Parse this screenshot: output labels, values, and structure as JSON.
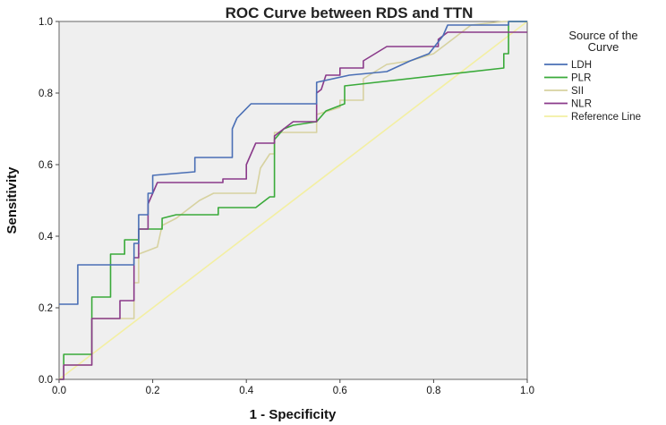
{
  "chart_data": {
    "type": "line",
    "title": "ROC Curve between RDS and TTN",
    "xlabel": "1 - Specificity",
    "ylabel": "Sensitivity",
    "xlim": [
      0,
      1
    ],
    "ylim": [
      0,
      1
    ],
    "x_ticks": [
      "0.0",
      "0.2",
      "0.4",
      "0.6",
      "0.8",
      "1.0"
    ],
    "y_ticks": [
      "0.0",
      "0.2",
      "0.4",
      "0.6",
      "0.8",
      "1.0"
    ],
    "grid": false,
    "plot_background": "#efefef",
    "legend": {
      "title_lines": [
        "Source of the",
        "Curve"
      ],
      "placement": "right"
    },
    "series": [
      {
        "name": "LDH",
        "color": "#4a6fb5",
        "points": [
          [
            0,
            0.21
          ],
          [
            0.04,
            0.21
          ],
          [
            0.04,
            0.32
          ],
          [
            0.16,
            0.32
          ],
          [
            0.16,
            0.38
          ],
          [
            0.17,
            0.38
          ],
          [
            0.17,
            0.46
          ],
          [
            0.19,
            0.46
          ],
          [
            0.19,
            0.52
          ],
          [
            0.2,
            0.52
          ],
          [
            0.2,
            0.57
          ],
          [
            0.29,
            0.58
          ],
          [
            0.29,
            0.62
          ],
          [
            0.37,
            0.62
          ],
          [
            0.37,
            0.7
          ],
          [
            0.38,
            0.73
          ],
          [
            0.41,
            0.77
          ],
          [
            0.55,
            0.77
          ],
          [
            0.55,
            0.83
          ],
          [
            0.62,
            0.85
          ],
          [
            0.7,
            0.86
          ],
          [
            0.75,
            0.89
          ],
          [
            0.79,
            0.91
          ],
          [
            0.82,
            0.96
          ],
          [
            0.83,
            0.99
          ],
          [
            0.96,
            0.99
          ],
          [
            0.96,
            1.0
          ],
          [
            1.0,
            1.0
          ]
        ]
      },
      {
        "name": "PLR",
        "color": "#3aaa3a",
        "points": [
          [
            0,
            0
          ],
          [
            0.01,
            0
          ],
          [
            0.01,
            0.07
          ],
          [
            0.07,
            0.07
          ],
          [
            0.07,
            0.23
          ],
          [
            0.11,
            0.23
          ],
          [
            0.11,
            0.35
          ],
          [
            0.14,
            0.35
          ],
          [
            0.14,
            0.39
          ],
          [
            0.17,
            0.39
          ],
          [
            0.17,
            0.42
          ],
          [
            0.22,
            0.42
          ],
          [
            0.22,
            0.45
          ],
          [
            0.25,
            0.46
          ],
          [
            0.34,
            0.46
          ],
          [
            0.34,
            0.48
          ],
          [
            0.42,
            0.48
          ],
          [
            0.45,
            0.51
          ],
          [
            0.46,
            0.51
          ],
          [
            0.46,
            0.67
          ],
          [
            0.48,
            0.7
          ],
          [
            0.5,
            0.71
          ],
          [
            0.55,
            0.72
          ],
          [
            0.57,
            0.75
          ],
          [
            0.61,
            0.77
          ],
          [
            0.61,
            0.82
          ],
          [
            0.95,
            0.87
          ],
          [
            0.95,
            0.91
          ],
          [
            0.96,
            0.91
          ],
          [
            0.96,
            1.0
          ],
          [
            1.0,
            1.0
          ]
        ]
      },
      {
        "name": "SII",
        "color": "#d7d2a0",
        "points": [
          [
            0,
            0
          ],
          [
            0.01,
            0
          ],
          [
            0.01,
            0.04
          ],
          [
            0.07,
            0.04
          ],
          [
            0.07,
            0.17
          ],
          [
            0.16,
            0.17
          ],
          [
            0.16,
            0.27
          ],
          [
            0.17,
            0.27
          ],
          [
            0.17,
            0.35
          ],
          [
            0.19,
            0.36
          ],
          [
            0.21,
            0.37
          ],
          [
            0.22,
            0.43
          ],
          [
            0.25,
            0.45
          ],
          [
            0.28,
            0.48
          ],
          [
            0.3,
            0.5
          ],
          [
            0.33,
            0.52
          ],
          [
            0.42,
            0.52
          ],
          [
            0.43,
            0.59
          ],
          [
            0.45,
            0.63
          ],
          [
            0.46,
            0.63
          ],
          [
            0.46,
            0.69
          ],
          [
            0.55,
            0.69
          ],
          [
            0.55,
            0.74
          ],
          [
            0.6,
            0.76
          ],
          [
            0.6,
            0.78
          ],
          [
            0.65,
            0.78
          ],
          [
            0.65,
            0.84
          ],
          [
            0.7,
            0.88
          ],
          [
            0.75,
            0.89
          ],
          [
            0.8,
            0.91
          ],
          [
            0.85,
            0.96
          ],
          [
            0.88,
            0.99
          ],
          [
            0.95,
            1.0
          ],
          [
            1.0,
            1.0
          ]
        ]
      },
      {
        "name": "NLR",
        "color": "#8a3a8a",
        "points": [
          [
            0,
            0
          ],
          [
            0.01,
            0
          ],
          [
            0.01,
            0.04
          ],
          [
            0.07,
            0.04
          ],
          [
            0.07,
            0.17
          ],
          [
            0.13,
            0.17
          ],
          [
            0.13,
            0.22
          ],
          [
            0.16,
            0.22
          ],
          [
            0.16,
            0.34
          ],
          [
            0.17,
            0.34
          ],
          [
            0.17,
            0.42
          ],
          [
            0.19,
            0.42
          ],
          [
            0.19,
            0.49
          ],
          [
            0.21,
            0.55
          ],
          [
            0.35,
            0.55
          ],
          [
            0.35,
            0.56
          ],
          [
            0.4,
            0.56
          ],
          [
            0.4,
            0.6
          ],
          [
            0.42,
            0.66
          ],
          [
            0.46,
            0.66
          ],
          [
            0.46,
            0.68
          ],
          [
            0.5,
            0.72
          ],
          [
            0.55,
            0.72
          ],
          [
            0.55,
            0.8
          ],
          [
            0.56,
            0.81
          ],
          [
            0.57,
            0.85
          ],
          [
            0.6,
            0.85
          ],
          [
            0.6,
            0.87
          ],
          [
            0.65,
            0.87
          ],
          [
            0.65,
            0.89
          ],
          [
            0.7,
            0.93
          ],
          [
            0.81,
            0.93
          ],
          [
            0.81,
            0.95
          ],
          [
            0.83,
            0.97
          ],
          [
            1.0,
            0.97
          ]
        ]
      },
      {
        "name": "Reference Line",
        "color": "#f3efa2",
        "points": [
          [
            0,
            0
          ],
          [
            1,
            1
          ]
        ]
      }
    ]
  }
}
